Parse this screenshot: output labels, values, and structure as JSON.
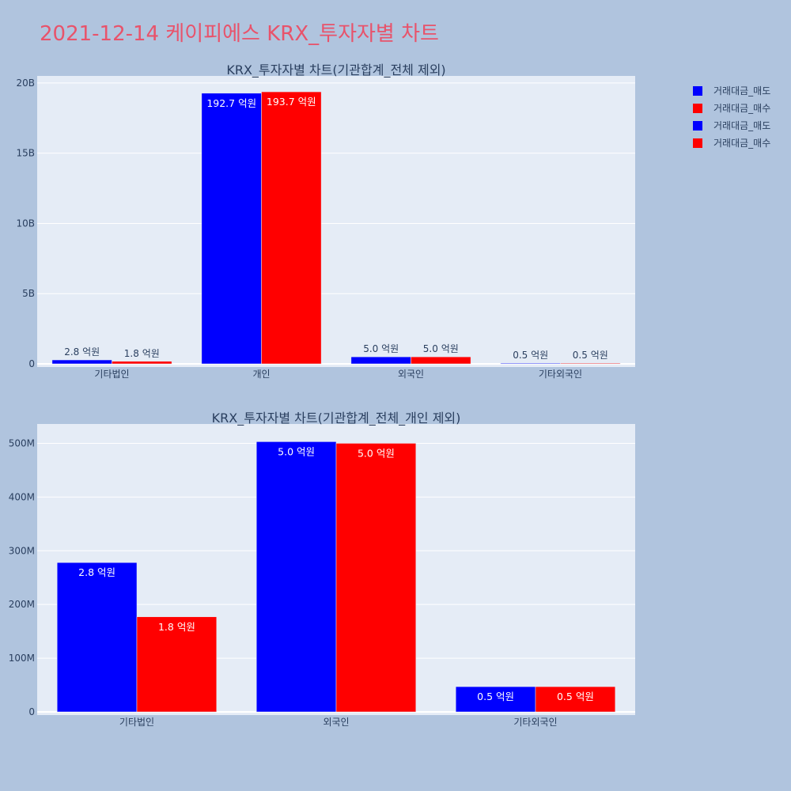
{
  "page": {
    "title": "2021-12-14 케이피에스 KRX_투자자별 차트"
  },
  "legend": {
    "items": [
      {
        "label": "거래대금_매도",
        "color": "#0000ff"
      },
      {
        "label": "거래대금_매수",
        "color": "#ff0000"
      },
      {
        "label": "거래대금_매도",
        "color": "#0000ff"
      },
      {
        "label": "거래대금_매수",
        "color": "#ff0000"
      }
    ]
  },
  "chart_data": [
    {
      "type": "bar",
      "title": "KRX_투자자별 차트(기관합계_전체 제외)",
      "categories": [
        "기타법인",
        "개인",
        "외국인",
        "기타외국인"
      ],
      "series": [
        {
          "name": "거래대금_매도",
          "color": "#0000ff",
          "values": [
            280000000,
            19270000000,
            500000000,
            50000000
          ],
          "labels": [
            "2.8 억원",
            "192.7 억원",
            "5.0 억원",
            "0.5 억원"
          ]
        },
        {
          "name": "거래대금_매수",
          "color": "#ff0000",
          "values": [
            180000000,
            19370000000,
            500000000,
            50000000
          ],
          "labels": [
            "1.8 억원",
            "193.7 억원",
            "5.0 억원",
            "0.5 억원"
          ]
        }
      ],
      "yticks": [
        0,
        5000000000,
        10000000000,
        15000000000,
        20000000000
      ],
      "ytick_labels": [
        "0",
        "5B",
        "10B",
        "15B",
        "20B"
      ],
      "ylim": [
        0,
        20500000000
      ],
      "grid": true
    },
    {
      "type": "bar",
      "title": "KRX_투자자별 차트(기관합계_전체_개인 제외)",
      "categories": [
        "기타법인",
        "외국인",
        "기타외국인"
      ],
      "series": [
        {
          "name": "거래대금_매도",
          "color": "#0000ff",
          "values": [
            278000000,
            503000000,
            47000000
          ],
          "labels": [
            "2.8 억원",
            "5.0 억원",
            "0.5 억원"
          ]
        },
        {
          "name": "거래대금_매수",
          "color": "#ff0000",
          "values": [
            177000000,
            500000000,
            47000000
          ],
          "labels": [
            "1.8 억원",
            "5.0 억원",
            "0.5 억원"
          ]
        }
      ],
      "yticks": [
        0,
        100000000,
        200000000,
        300000000,
        400000000,
        500000000
      ],
      "ytick_labels": [
        "0",
        "100M",
        "200M",
        "300M",
        "400M",
        "500M"
      ],
      "ylim": [
        0,
        536000000
      ],
      "grid": true
    }
  ]
}
